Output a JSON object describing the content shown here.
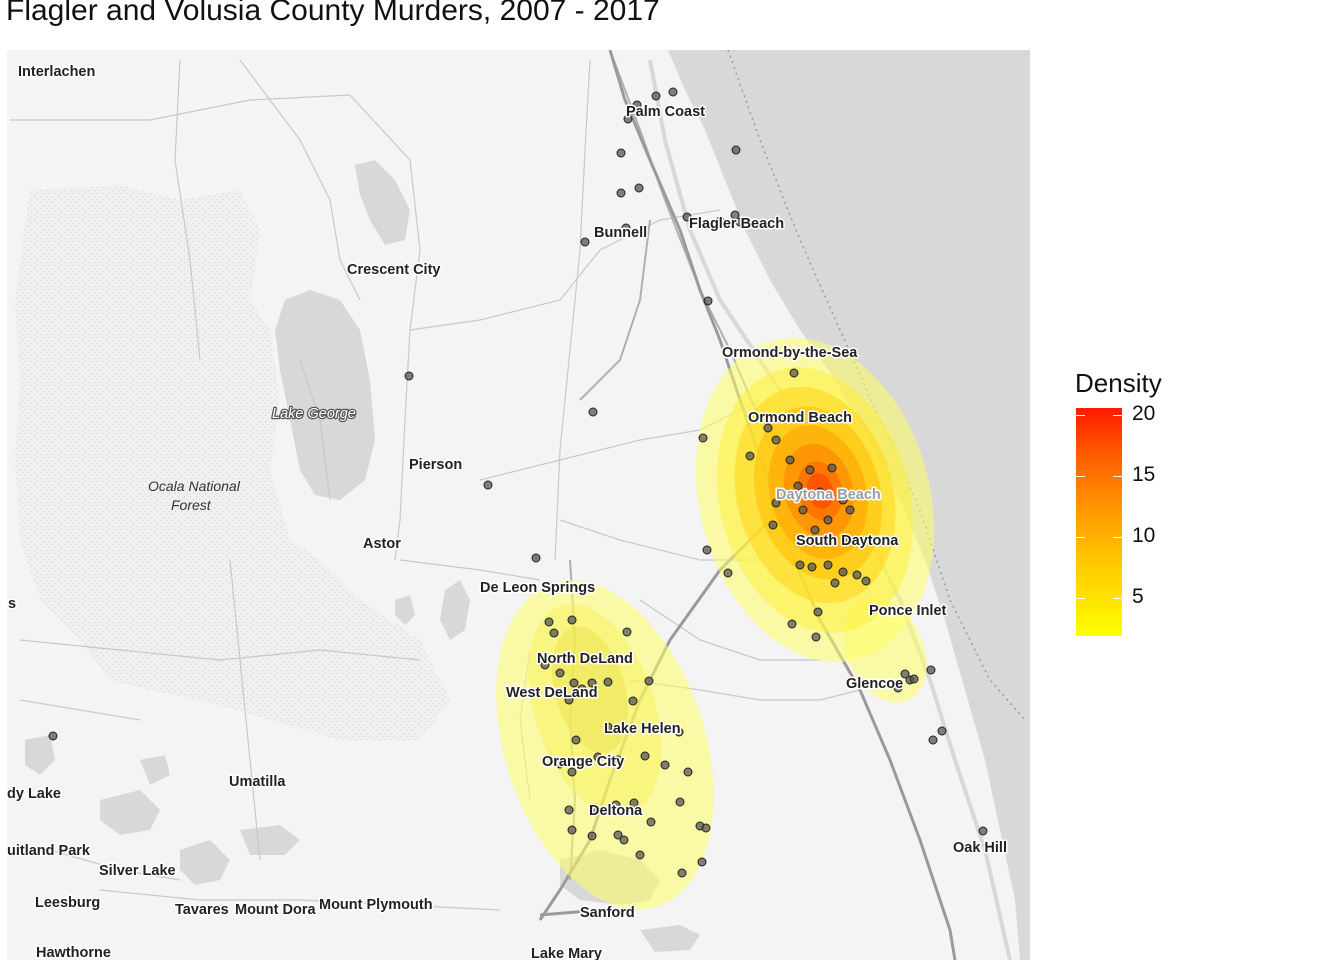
{
  "title": "Flagler and Volusia County Murders, 2007 - 2017",
  "legend": {
    "title": "Density",
    "ticks": [
      "20",
      "15",
      "10",
      "5"
    ],
    "colors": {
      "low": "#ffff00",
      "high": "#ff1a00"
    }
  },
  "places": {
    "interlachen": "Interlachen",
    "palm_coast": "Palm Coast",
    "bunnell": "Bunnell",
    "flagler_beach": "Flagler Beach",
    "crescent_city": "Crescent City",
    "ormond_by_the_sea": "Ormond-by-the-Sea",
    "lake_george": "Lake George",
    "ormond_beach": "Ormond Beach",
    "pierson": "Pierson",
    "ocala_forest_1": "Ocala National",
    "ocala_forest_2": "Forest",
    "daytona_beach": "Daytona Beach",
    "south_daytona": "South Daytona",
    "astor": "Astor",
    "de_leon_springs": "De Leon Springs",
    "ponce_inlet": "Ponce Inlet",
    "north_deland": "North DeLand",
    "west_deland": "West DeLand",
    "glencoe": "Glencoe",
    "lake_helen": "Lake Helen",
    "orange_city": "Orange City",
    "umatilla": "Umatilla",
    "lady_lake": "dy Lake",
    "deltona": "Deltona",
    "oak_hill": "Oak Hill",
    "fruitland_park": "uitland Park",
    "silver_lake": "Silver Lake",
    "leesburg": "Leesburg",
    "tavares": "Tavares",
    "mount_dora": "Mount Dora",
    "mount_plymouth": "Mount Plymouth",
    "sanford": "Sanford",
    "hawthorne": "Hawthorne",
    "lake_mary": "Lake Mary",
    "edge_s": "s"
  }
}
